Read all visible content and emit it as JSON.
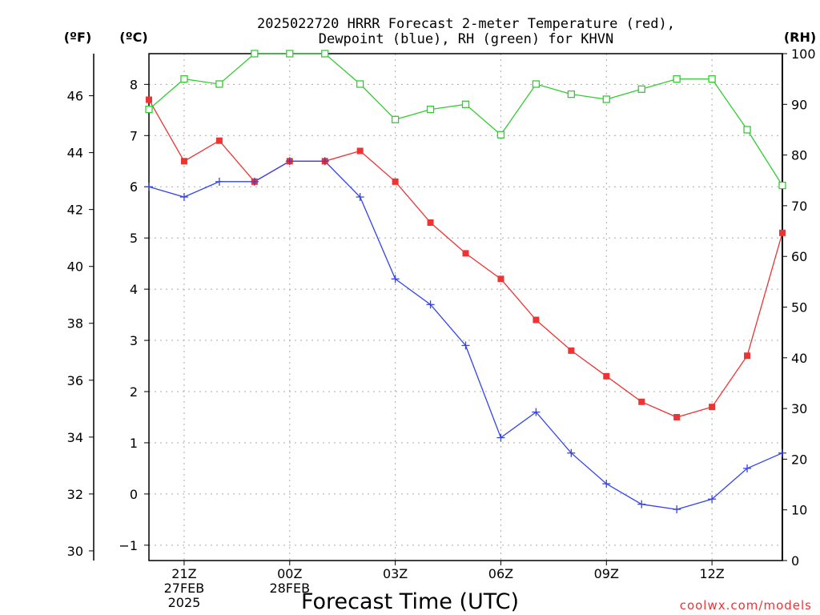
{
  "chart_data": {
    "type": "line",
    "title_line1": "2025022720 HRRR Forecast 2-meter Temperature (red),",
    "title_line2": "Dewpoint (blue), RH (green) for KHVN",
    "xlabel": "Forecast Time (UTC)",
    "unit_f": "(ºF)",
    "unit_c": "(ºC)",
    "unit_rh": "(RH)",
    "credit": "coolwx.com/models",
    "x_hours": [
      0,
      1,
      2,
      3,
      4,
      5,
      6,
      7,
      8,
      9,
      10,
      11,
      12,
      13,
      14,
      15,
      16,
      17,
      18
    ],
    "x_ticks": [
      {
        "hour": 1,
        "lines": [
          "21Z",
          "27FEB",
          "2025"
        ]
      },
      {
        "hour": 4,
        "lines": [
          "00Z",
          "28FEB"
        ]
      },
      {
        "hour": 7,
        "lines": [
          "03Z"
        ]
      },
      {
        "hour": 10,
        "lines": [
          "06Z"
        ]
      },
      {
        "hour": 13,
        "lines": [
          "09Z"
        ]
      },
      {
        "hour": 16,
        "lines": [
          "12Z"
        ]
      }
    ],
    "ylim_c": [
      -1.3,
      8.6
    ],
    "ylim_rh": [
      0,
      100
    ],
    "left_f_ticks": [
      "30",
      "32",
      "34",
      "36",
      "38",
      "40",
      "42",
      "44",
      "46"
    ],
    "left_c_ticks": [
      "−1",
      "0",
      "1",
      "2",
      "3",
      "4",
      "5",
      "6",
      "7",
      "8"
    ],
    "right_rh_ticks": [
      "0",
      "10",
      "20",
      "30",
      "40",
      "50",
      "60",
      "70",
      "80",
      "90",
      "100"
    ],
    "grid": true,
    "series": [
      {
        "name": "Temperature",
        "color": "#ee3333",
        "marker": "filled-square",
        "values_c": [
          7.7,
          6.5,
          6.9,
          6.1,
          6.5,
          6.5,
          6.7,
          6.1,
          5.3,
          4.7,
          4.2,
          3.4,
          2.8,
          2.3,
          1.8,
          1.5,
          1.7,
          2.7,
          5.1
        ]
      },
      {
        "name": "Dewpoint",
        "color": "#3344ee",
        "marker": "plus",
        "values_c": [
          6.0,
          5.8,
          6.1,
          6.1,
          6.5,
          6.5,
          5.8,
          4.2,
          3.7,
          2.9,
          1.1,
          1.6,
          0.8,
          0.2,
          -0.2,
          -0.3,
          -0.1,
          0.5,
          0.8
        ]
      },
      {
        "name": "RH",
        "color": "#33cc33",
        "marker": "open-square",
        "values_rh": [
          89,
          95,
          94,
          100,
          100,
          100,
          94,
          87,
          89,
          90,
          84,
          94,
          92,
          91,
          93,
          95,
          95,
          85,
          74
        ]
      }
    ]
  }
}
